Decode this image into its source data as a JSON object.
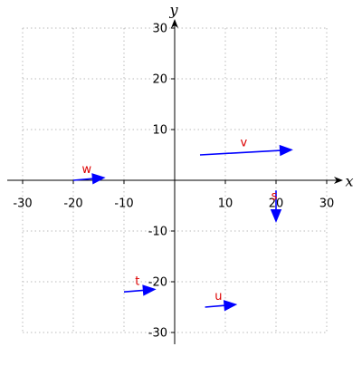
{
  "chart_data": {
    "type": "vector",
    "x_label": "x",
    "y_label": "y",
    "xlim": [
      -30,
      30
    ],
    "ylim": [
      -30,
      30
    ],
    "xticks": [
      -30,
      -20,
      -10,
      10,
      20,
      30
    ],
    "yticks": [
      -30,
      -20,
      -10,
      10,
      20,
      30
    ],
    "grid": true,
    "arrow_color": "#0000ff",
    "label_color": "#dd0000",
    "vectors": [
      {
        "name": "v",
        "x": 5,
        "y": 5,
        "dx": 18,
        "dy": 1
      },
      {
        "name": "w",
        "x": -20,
        "y": 0,
        "dx": 6,
        "dy": 0.5
      },
      {
        "name": "s",
        "x": 20,
        "y": -2,
        "dx": 0,
        "dy": -6
      },
      {
        "name": "t",
        "x": -10,
        "y": -22,
        "dx": 6,
        "dy": 0.5
      },
      {
        "name": "u",
        "x": 6,
        "y": -25,
        "dx": 6,
        "dy": 0.5
      }
    ]
  }
}
